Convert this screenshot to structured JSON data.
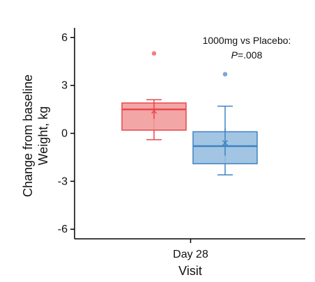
{
  "chart_data": {
    "type": "box",
    "title": "",
    "xlabel": "Visit",
    "ylabel_lines": [
      "Change from baseline",
      "Weight, kg"
    ],
    "categories": [
      "Day 28"
    ],
    "y_ticks": [
      6,
      3,
      0,
      -3,
      -6
    ],
    "y_tick_labels": [
      "6",
      "3",
      "0",
      "-3",
      "-6"
    ],
    "ylim": [
      -6.6,
      6.6
    ],
    "grid": false,
    "legend": "none",
    "annotation": {
      "line1": "1000mg vs Placebo:",
      "p_italic": "P",
      "p_rest": "=.008"
    },
    "series": [
      {
        "category": "Day 28",
        "color": "#e8474c",
        "fill": "#f19c9c",
        "whisker_low": -0.4,
        "q1": 0.2,
        "median": 1.5,
        "q3": 1.9,
        "whisker_high": 2.1,
        "mean": 1.4,
        "ci_low": 0.9,
        "ci_high": 1.9,
        "outliers": [
          5.0
        ]
      },
      {
        "category": "Day 28",
        "color": "#3f82c2",
        "fill": "#98bfe0",
        "whisker_low": -2.6,
        "q1": -1.9,
        "median": -0.8,
        "q3": 0.1,
        "whisker_high": 1.7,
        "mean": -0.6,
        "ci_low": -1.4,
        "ci_high": 0.3,
        "outliers": [
          3.7
        ]
      }
    ]
  }
}
